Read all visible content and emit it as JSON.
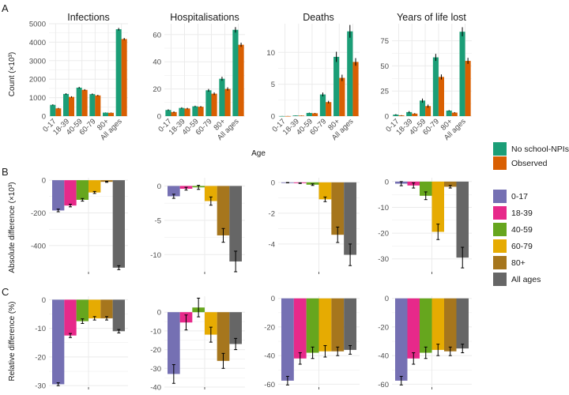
{
  "panel_labels": [
    "A",
    "B",
    "C"
  ],
  "colors": {
    "no_school": "#1b9e77",
    "observed": "#d95f02",
    "age": {
      "0-17": "#7570b3",
      "18-39": "#e7298a",
      "40-59": "#66a61e",
      "60-79": "#e6ab02",
      "80+": "#a6761d",
      "All ages": "#666666"
    },
    "grid": "#ebebeb",
    "axis_text": "#4d4d4d"
  },
  "legend_top": {
    "items": [
      {
        "label": "No school-NPIs",
        "key": "no_school"
      },
      {
        "label": "Observed",
        "key": "observed"
      }
    ]
  },
  "legend_bottom": {
    "items": [
      "0-17",
      "18-39",
      "40-59",
      "60-79",
      "80+",
      "All ages"
    ]
  },
  "chart_data": [
    {
      "type": "bar",
      "row": "A",
      "ylabel": "Count (×10³)",
      "xlabel": "Age",
      "categories": [
        "0-17",
        "18-39",
        "40-59",
        "60-79",
        "80+",
        "All ages"
      ],
      "facets": [
        {
          "title": "Infections",
          "ylim": [
            0,
            5000
          ],
          "ticks": [
            0,
            1000,
            2000,
            3000,
            4000,
            5000
          ],
          "series": [
            {
              "name": "No school-NPIs",
              "values": [
                610,
                1200,
                1540,
                1190,
                190,
                4700
              ],
              "err": [
                30,
                40,
                45,
                35,
                10,
                70
              ]
            },
            {
              "name": "Observed",
              "values": [
                420,
                1040,
                1420,
                1120,
                180,
                4170
              ],
              "err": [
                25,
                35,
                40,
                35,
                10,
                60
              ]
            }
          ]
        },
        {
          "title": "Hospitalisations",
          "ylim": [
            0,
            68
          ],
          "ticks": [
            0,
            20,
            40,
            60
          ],
          "series": [
            {
              "name": "No school-NPIs",
              "values": [
                4.5,
                6,
                7.2,
                19,
                27.5,
                63.5
              ],
              "err": [
                0.5,
                0.5,
                0.5,
                1,
                1.5,
                2
              ]
            },
            {
              "name": "Observed",
              "values": [
                3,
                5.6,
                6.9,
                16.5,
                20,
                52.5
              ],
              "err": [
                0.5,
                0.5,
                0.5,
                1,
                1.2,
                1.5
              ]
            }
          ]
        },
        {
          "title": "Deaths",
          "ylim": [
            0,
            14.5
          ],
          "ticks": [
            0,
            5,
            10
          ],
          "series": [
            {
              "name": "No school-NPIs",
              "values": [
                0.01,
                0.1,
                0.5,
                3.4,
                9.3,
                13.3
              ],
              "err": [
                0.01,
                0.02,
                0.05,
                0.3,
                0.8,
                1
              ]
            },
            {
              "name": "Observed",
              "values": [
                0.01,
                0.08,
                0.45,
                2.2,
                6,
                8.5
              ],
              "err": [
                0.01,
                0.02,
                0.05,
                0.2,
                0.5,
                0.6
              ]
            }
          ]
        },
        {
          "title": "Years of life lost",
          "ylim": [
            0,
            92
          ],
          "ticks": [
            0,
            25,
            50,
            75
          ],
          "series": [
            {
              "name": "No school-NPIs",
              "values": [
                1.5,
                4,
                15.5,
                58.5,
                5.5,
                84
              ],
              "err": [
                0.5,
                1,
                2,
                3.5,
                0.5,
                4.5
              ]
            },
            {
              "name": "Observed",
              "values": [
                0.7,
                2.5,
                10,
                39,
                3.5,
                55
              ],
              "err": [
                0.3,
                0.5,
                1.5,
                2.5,
                0.5,
                3
              ]
            }
          ]
        }
      ]
    },
    {
      "type": "bar",
      "row": "B",
      "ylabel": "Absolute difference (×10³)",
      "categories": [
        "0-17",
        "18-39",
        "40-59",
        "60-79",
        "80+",
        "All ages"
      ],
      "facets": [
        {
          "ylim": [
            -560,
            15
          ],
          "ticks": [
            0,
            -200,
            -400
          ],
          "values": [
            -185,
            -155,
            -120,
            -75,
            -10,
            -535
          ],
          "err": [
            8,
            8,
            8,
            6,
            3,
            12
          ]
        },
        {
          "ylim": [
            -12.5,
            1.2
          ],
          "ticks": [
            0,
            -5,
            -10
          ],
          "values": [
            -1.5,
            -0.4,
            -0.2,
            -2.2,
            -7.2,
            -11
          ],
          "err": [
            0.3,
            0.2,
            0.3,
            0.6,
            1,
            1.5
          ]
        },
        {
          "ylim": [
            -5.8,
            0.3
          ],
          "ticks": [
            0,
            -2,
            -4
          ],
          "values": [
            -0.02,
            -0.05,
            -0.15,
            -1.1,
            -3.4,
            -4.7
          ],
          "err": [
            0.01,
            0.02,
            0.05,
            0.15,
            0.5,
            0.7
          ]
        },
        {
          "ylim": [
            -35,
            1.5
          ],
          "ticks": [
            0,
            -10,
            -20,
            -30
          ],
          "values": [
            -0.8,
            -1.5,
            -5.5,
            -19.5,
            -2,
            -29.5
          ],
          "err": [
            0.8,
            1,
            1.5,
            3,
            0.5,
            4
          ]
        }
      ]
    },
    {
      "type": "bar",
      "row": "C",
      "ylabel": "Relative difference (%)",
      "categories": [
        "0-17",
        "18-39",
        "40-59",
        "60-79",
        "80+",
        "All ages"
      ],
      "facets": [
        {
          "ylim": [
            -30.5,
            1.2
          ],
          "ticks": [
            0,
            -10,
            -20,
            -30
          ],
          "values": [
            -29.5,
            -12.5,
            -7.5,
            -6.5,
            -6.5,
            -11
          ],
          "err": [
            0.5,
            0.7,
            0.8,
            0.6,
            0.6,
            0.6
          ]
        },
        {
          "ylim": [
            -40,
            8.5
          ],
          "ticks": [
            0,
            -10,
            -20,
            -30,
            -40
          ],
          "values": [
            -33,
            -5.5,
            2.5,
            -12,
            -26,
            -17
          ],
          "err": [
            5,
            4,
            5,
            4,
            4,
            3
          ]
        },
        {
          "ylim": [
            -62,
            1.5
          ],
          "ticks": [
            0,
            -20,
            -40,
            -60
          ],
          "values": [
            -57.5,
            -42,
            -38,
            -37,
            -37,
            -36
          ],
          "err": [
            3,
            4,
            4,
            4,
            3,
            3
          ]
        },
        {
          "ylim": [
            -62,
            1.5
          ],
          "ticks": [
            0,
            -20,
            -40,
            -60
          ],
          "values": [
            -57.5,
            -42,
            -38,
            -36,
            -37,
            -35
          ],
          "err": [
            3,
            4,
            4,
            4,
            3,
            3
          ]
        }
      ]
    }
  ]
}
